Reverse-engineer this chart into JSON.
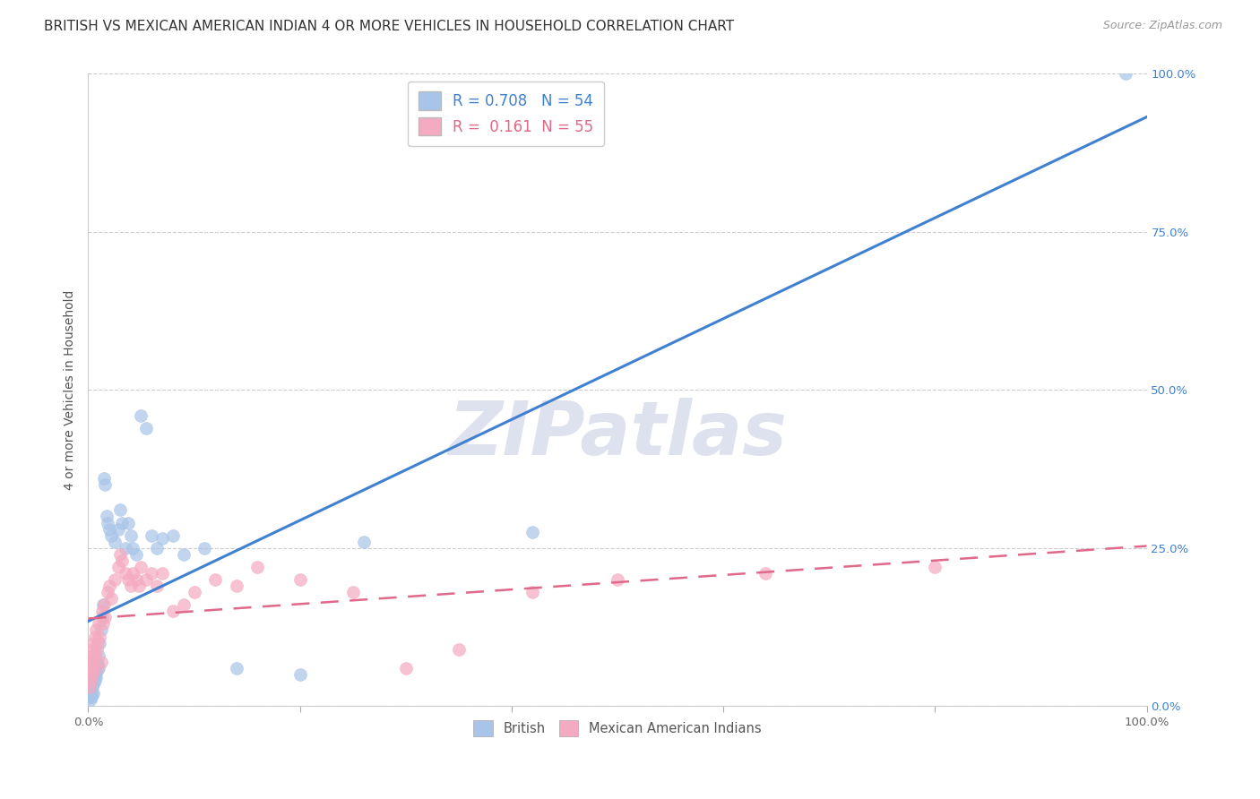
{
  "title": "BRITISH VS MEXICAN AMERICAN INDIAN 4 OR MORE VEHICLES IN HOUSEHOLD CORRELATION CHART",
  "source": "Source: ZipAtlas.com",
  "ylabel": "4 or more Vehicles in Household",
  "watermark": "ZIPatlas",
  "legend_british_r": "0.708",
  "legend_british_n": "54",
  "legend_mexican_r": "0.161",
  "legend_mexican_n": "55",
  "british_color": "#a8c4e8",
  "british_line_color": "#4080d0",
  "mexican_color": "#f4aac0",
  "mexican_line_color": "#e06888",
  "british_x": [
    0.001,
    0.001,
    0.002,
    0.002,
    0.002,
    0.003,
    0.003,
    0.003,
    0.004,
    0.004,
    0.005,
    0.005,
    0.005,
    0.006,
    0.006,
    0.007,
    0.007,
    0.008,
    0.008,
    0.009,
    0.01,
    0.01,
    0.011,
    0.012,
    0.013,
    0.014,
    0.015,
    0.016,
    0.017,
    0.018,
    0.02,
    0.022,
    0.025,
    0.028,
    0.03,
    0.032,
    0.035,
    0.038,
    0.04,
    0.042,
    0.045,
    0.05,
    0.055,
    0.06,
    0.065,
    0.07,
    0.08,
    0.09,
    0.11,
    0.14,
    0.2,
    0.26,
    0.42,
    0.98
  ],
  "british_y": [
    0.02,
    0.015,
    0.025,
    0.03,
    0.01,
    0.035,
    0.02,
    0.015,
    0.03,
    0.04,
    0.045,
    0.035,
    0.02,
    0.05,
    0.04,
    0.06,
    0.045,
    0.07,
    0.055,
    0.065,
    0.08,
    0.06,
    0.1,
    0.12,
    0.14,
    0.16,
    0.36,
    0.35,
    0.3,
    0.29,
    0.28,
    0.27,
    0.26,
    0.28,
    0.31,
    0.29,
    0.25,
    0.29,
    0.27,
    0.25,
    0.24,
    0.46,
    0.44,
    0.27,
    0.25,
    0.265,
    0.27,
    0.24,
    0.25,
    0.06,
    0.05,
    0.26,
    0.275,
    1.0
  ],
  "mexican_x": [
    0.001,
    0.001,
    0.002,
    0.002,
    0.003,
    0.003,
    0.004,
    0.004,
    0.005,
    0.005,
    0.006,
    0.006,
    0.007,
    0.007,
    0.008,
    0.009,
    0.01,
    0.011,
    0.012,
    0.013,
    0.014,
    0.015,
    0.016,
    0.018,
    0.02,
    0.022,
    0.025,
    0.028,
    0.03,
    0.032,
    0.035,
    0.038,
    0.04,
    0.042,
    0.045,
    0.048,
    0.05,
    0.055,
    0.06,
    0.065,
    0.07,
    0.08,
    0.09,
    0.1,
    0.12,
    0.14,
    0.16,
    0.2,
    0.25,
    0.3,
    0.35,
    0.42,
    0.5,
    0.64,
    0.8
  ],
  "mexican_y": [
    0.05,
    0.03,
    0.07,
    0.04,
    0.08,
    0.06,
    0.09,
    0.05,
    0.1,
    0.07,
    0.11,
    0.08,
    0.12,
    0.06,
    0.09,
    0.1,
    0.13,
    0.11,
    0.07,
    0.15,
    0.13,
    0.16,
    0.14,
    0.18,
    0.19,
    0.17,
    0.2,
    0.22,
    0.24,
    0.23,
    0.21,
    0.2,
    0.19,
    0.21,
    0.2,
    0.19,
    0.22,
    0.2,
    0.21,
    0.19,
    0.21,
    0.15,
    0.16,
    0.18,
    0.2,
    0.19,
    0.22,
    0.2,
    0.18,
    0.06,
    0.09,
    0.18,
    0.2,
    0.21,
    0.22
  ],
  "xlim": [
    0.0,
    1.0
  ],
  "ylim": [
    0.0,
    1.0
  ],
  "grid_color": "#cccccc",
  "background_color": "#ffffff",
  "title_fontsize": 11,
  "axis_label_fontsize": 10,
  "tick_fontsize": 9.5,
  "legend_fontsize": 12,
  "watermark_fontsize": 60,
  "watermark_color": "#dde2ee",
  "source_fontsize": 9,
  "right_tick_color": "#4080d0"
}
